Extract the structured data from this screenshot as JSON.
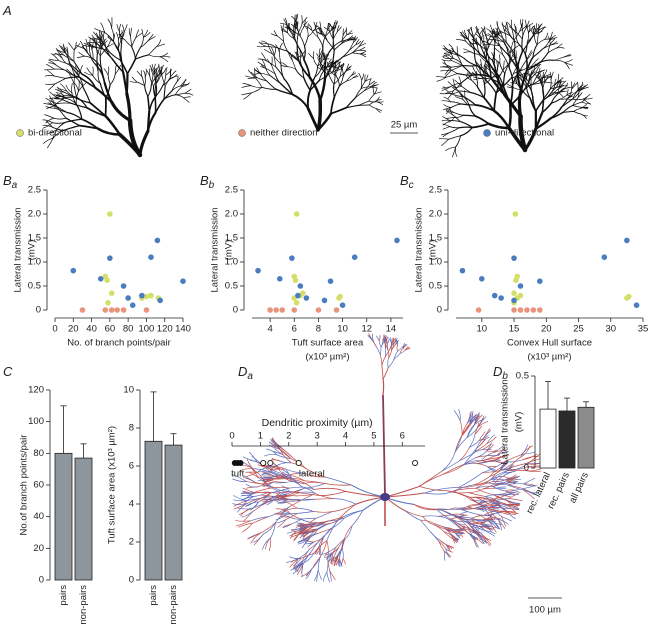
{
  "panels": [
    {
      "letter": "A"
    },
    {
      "letter": "B",
      "sub": "a"
    },
    {
      "letter": "B",
      "sub": "b"
    },
    {
      "letter": "B",
      "sub": "c"
    },
    {
      "letter": "C"
    },
    {
      "letter": "D",
      "sub": "a"
    },
    {
      "letter": "D",
      "sub": "b"
    }
  ],
  "legend": [
    {
      "label": "bi-directional",
      "color": "#d4df6a"
    },
    {
      "label": "neither direction",
      "color": "#e9937a"
    },
    {
      "label": "uni-directional",
      "color": "#4a7cc0"
    }
  ],
  "scale_bars": [
    "25 µm",
    "100 µm"
  ],
  "chart_data": [
    {
      "type": "scatter",
      "ylabel": [
        "Lateral transmission",
        "(mV)"
      ],
      "xlabel": [
        "No. of branch points/pair"
      ],
      "xlim": [
        0,
        140
      ],
      "xticks": [
        0,
        20,
        40,
        60,
        80,
        100,
        120,
        140
      ],
      "ylim": [
        0,
        2.5
      ],
      "yticks": [
        0,
        0.5,
        {
          "value": 1,
          "label": "1.0"
        },
        1.5,
        {
          "value": 2,
          "label": "2.0"
        },
        2.5
      ],
      "series": [
        {
          "color": "#d4df6a",
          "x": [
            60,
            55,
            57,
            62,
            58,
            95,
            100,
            105,
            113
          ],
          "values": [
            2.0,
            0.7,
            0.62,
            0.35,
            0.15,
            0.25,
            0.28,
            0.3,
            0.25
          ]
        },
        {
          "color": "#e9937a",
          "x": [
            30,
            55,
            62,
            68,
            75,
            100
          ],
          "values": [
            0,
            0,
            0,
            0,
            0,
            0
          ]
        },
        {
          "color": "#4a7cc0",
          "x": [
            20,
            50,
            60,
            75,
            80,
            85,
            95,
            105,
            112,
            115,
            140
          ],
          "values": [
            0.82,
            0.65,
            1.08,
            0.5,
            0.25,
            0.1,
            0.3,
            1.1,
            1.45,
            0.2,
            0.6
          ]
        }
      ]
    },
    {
      "type": "scatter",
      "ylabel": [
        "Lateral transmission",
        "(mV)"
      ],
      "xlabel": [
        "Tuft surface area",
        "(x10³ µm²)"
      ],
      "xlim": [
        2.5,
        15
      ],
      "xticks": [
        4,
        6,
        8,
        10,
        12,
        14
      ],
      "ylim": [
        0,
        2.5
      ],
      "yticks": [
        0,
        0.5,
        {
          "value": 1,
          "label": "1.0"
        },
        1.5,
        {
          "value": 2,
          "label": "2.0"
        },
        2.5
      ],
      "series": [
        {
          "color": "#d4df6a",
          "x": [
            6.2,
            6,
            6.1,
            6.7,
            6.2,
            9.7,
            9.8,
            6.5,
            6
          ],
          "values": [
            2.0,
            0.7,
            0.62,
            0.35,
            0.15,
            0.25,
            0.28,
            0.3,
            0.25
          ]
        },
        {
          "color": "#e9937a",
          "x": [
            4,
            4.5,
            5,
            6,
            8,
            9.5
          ],
          "values": [
            0,
            0,
            0,
            0,
            0,
            0
          ]
        },
        {
          "color": "#4a7cc0",
          "x": [
            3,
            4.8,
            5.8,
            6.5,
            7,
            10,
            6.3,
            11,
            14.5,
            8.5,
            9
          ],
          "values": [
            0.82,
            0.65,
            1.08,
            0.5,
            0.25,
            0.1,
            0.3,
            1.1,
            1.45,
            0.2,
            0.6
          ]
        }
      ]
    },
    {
      "type": "scatter",
      "ylabel": [
        "Lateral transmission",
        "(mV)"
      ],
      "xlabel": [
        "Convex Hull surface",
        "(x10³ µm²)"
      ],
      "xlim": [
        6,
        35
      ],
      "xticks": [
        10,
        15,
        20,
        25,
        30,
        35
      ],
      "ylim": [
        0,
        2.5
      ],
      "yticks": [
        0,
        0.5,
        {
          "value": 1,
          "label": "1.0"
        },
        1.5,
        {
          "value": 2,
          "label": "2.0"
        },
        2.5
      ],
      "series": [
        {
          "color": "#d4df6a",
          "x": [
            15.2,
            15.5,
            15.3,
            15,
            15,
            32.5,
            32.8,
            16,
            15.5
          ],
          "values": [
            2.0,
            0.7,
            0.62,
            0.35,
            0.15,
            0.25,
            0.28,
            0.3,
            0.25
          ]
        },
        {
          "color": "#e9937a",
          "x": [
            9.5,
            15,
            16,
            17,
            18,
            19
          ],
          "values": [
            0,
            0,
            0,
            0,
            0,
            0
          ]
        },
        {
          "color": "#4a7cc0",
          "x": [
            7,
            10,
            15,
            16,
            13,
            34,
            12,
            29,
            32.5,
            15,
            19
          ],
          "values": [
            0.82,
            0.65,
            1.08,
            0.5,
            0.25,
            0.1,
            0.3,
            1.1,
            1.45,
            0.2,
            0.6
          ]
        }
      ]
    },
    {
      "type": "bar",
      "ylabel": [
        "No.of branch points/pair"
      ],
      "categories": [
        "pairs",
        "non-pairs"
      ],
      "values": [
        80,
        77
      ],
      "errors": [
        30,
        9
      ],
      "color": "#8c969c",
      "ylim": [
        0,
        120
      ],
      "yticks": [
        0,
        20,
        40,
        60,
        80,
        100,
        120
      ]
    },
    {
      "type": "bar",
      "ylabel": [
        "Tuft surface area (x10³ µm²)"
      ],
      "categories": [
        "pairs",
        "non-pairs"
      ],
      "values": [
        7.3,
        7.1
      ],
      "errors": [
        2.6,
        0.6
      ],
      "color": "#8c969c",
      "ylim": [
        0,
        10
      ],
      "yticks": [
        0,
        2,
        4,
        6,
        8,
        10
      ]
    },
    {
      "type": "strip",
      "xlabel": [
        "Dendritic proximity (µm)"
      ],
      "xlim": [
        0,
        6.8
      ],
      "xticks": [
        0,
        1,
        2,
        3,
        4,
        5,
        6
      ],
      "series": [
        {
          "name": "tuft",
          "filled": true,
          "values": [
            0.1,
            0.2,
            0.3
          ]
        },
        {
          "name": "lateral",
          "filled": false,
          "values": [
            1.1,
            1.35,
            2.35,
            6.45
          ]
        }
      ]
    },
    {
      "type": "bar",
      "ylabel": [
        "Lateral transmission",
        "(mV)"
      ],
      "categories": [
        "rec. lateral",
        "rec. pairs",
        "all pairs"
      ],
      "values": [
        0.32,
        0.31,
        0.33
      ],
      "errors": [
        0.15,
        0.07,
        0.03
      ],
      "colors": [
        "#ffffff",
        "#2b2b2b",
        "#8c8c8c"
      ],
      "ylim": [
        0,
        0.5
      ],
      "yticks": [
        0,
        0.5
      ]
    }
  ]
}
